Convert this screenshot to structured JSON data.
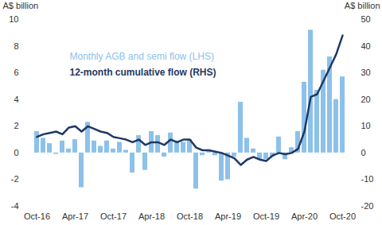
{
  "chart_data": {
    "type": "bar",
    "categories": [
      "Oct-16",
      null,
      null,
      null,
      null,
      null,
      "Apr-17",
      null,
      null,
      null,
      null,
      null,
      "Oct-17",
      null,
      null,
      null,
      null,
      null,
      "Apr-18",
      null,
      null,
      null,
      null,
      null,
      "Oct-18",
      null,
      null,
      null,
      null,
      null,
      "Apr-19",
      null,
      null,
      null,
      null,
      null,
      "Oct-19",
      null,
      null,
      null,
      null,
      null,
      "Apr-20",
      null,
      null,
      null,
      null,
      null,
      "Oct-20"
    ],
    "series": [
      {
        "name": "Monthly AGB and semi flow (LHS)",
        "type": "bar",
        "color": "#8cc1e9",
        "values": [
          1.6,
          1.1,
          0.7,
          -0.1,
          0.9,
          0.3,
          1.0,
          -2.6,
          2.3,
          0.9,
          0.5,
          0.9,
          0.3,
          0.8,
          0.2,
          -1.5,
          1.3,
          -1.3,
          1.6,
          1.3,
          -0.3,
          1.5,
          0.9,
          0.8,
          1.0,
          -2.7,
          -0.2,
          0.1,
          -0.2,
          -2.1,
          -2.0,
          -0.3,
          3.8,
          1.1,
          0.3,
          -0.5,
          -0.5,
          -0.3,
          1.2,
          -0.5,
          0.4,
          1.6,
          5.3,
          9.2,
          4.7,
          6.2,
          7.2,
          4.0,
          5.7
        ]
      },
      {
        "name": "12-month cumulative flow (RHS)",
        "type": "line",
        "axis": "y2",
        "color": "#1f3864",
        "values": [
          6,
          7,
          7.5,
          8,
          7,
          9.5,
          10,
          8,
          10,
          9,
          8,
          7.5,
          6,
          5.5,
          5,
          4,
          5,
          3,
          4,
          4,
          3,
          5,
          4,
          5,
          5,
          2,
          1,
          1,
          0.5,
          0,
          -1,
          -2,
          -4.5,
          -2.5,
          -1.5,
          -2.5,
          -3,
          -1,
          0,
          -0.5,
          0,
          1.5,
          8,
          21,
          22,
          27,
          32,
          37,
          44
        ]
      }
    ],
    "ylabel": "A$ billion",
    "y2label": "A$ billion",
    "ylim": [
      -4,
      10
    ],
    "yticks": [
      -4,
      -2,
      0,
      2,
      4,
      6,
      8,
      10
    ],
    "y2lim": [
      -20,
      50
    ],
    "y2ticks": [
      -20,
      -10,
      0,
      10,
      20,
      30,
      40,
      50
    ],
    "grid": false
  }
}
